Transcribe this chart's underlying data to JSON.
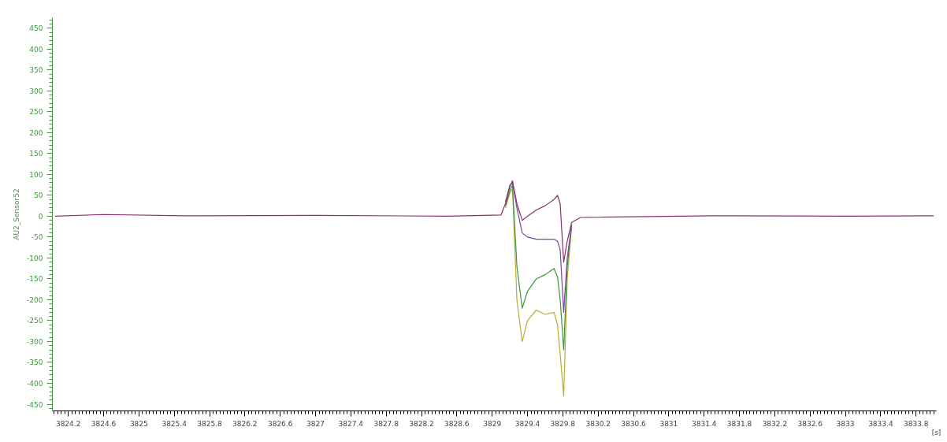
{
  "chart_data": {
    "type": "line",
    "ylabel": "AU2_Sensor52",
    "xlabel": "[s]",
    "x": [
      3824.05,
      3824.6,
      3825.5,
      3827.0,
      3828.5,
      3829.1,
      3829.15,
      3829.2,
      3829.23,
      3829.28,
      3829.34,
      3829.4,
      3829.5,
      3829.6,
      3829.7,
      3829.74,
      3829.77,
      3829.81,
      3829.85,
      3829.9,
      3830.0,
      3831.5,
      3833.0,
      3834.0
    ],
    "series": [
      {
        "color": "#8a2f6a",
        "values": [
          0,
          4,
          1,
          2,
          0,
          3,
          30,
          70,
          85,
          30,
          -10,
          0,
          15,
          25,
          40,
          50,
          30,
          -110,
          -60,
          -15,
          -3,
          1,
          0,
          1
        ]
      },
      {
        "color": "#7a44a0",
        "values": [
          null,
          null,
          null,
          null,
          null,
          null,
          34,
          74,
          80,
          20,
          -40,
          -50,
          -55,
          -55,
          -55,
          -60,
          -80,
          -230,
          -100,
          -20,
          null,
          null,
          null,
          null
        ]
      },
      {
        "color": "#3a963a",
        "values": [
          null,
          null,
          null,
          null,
          null,
          null,
          25,
          60,
          75,
          -120,
          -220,
          -180,
          -150,
          -140,
          -125,
          -145,
          -200,
          -320,
          -120,
          -22,
          null,
          null,
          null,
          null
        ]
      },
      {
        "color": "#b3ae35",
        "values": [
          null,
          null,
          null,
          null,
          null,
          null,
          20,
          55,
          65,
          -200,
          -300,
          -250,
          -225,
          -235,
          -230,
          -260,
          -330,
          -430,
          -150,
          -25,
          null,
          null,
          null,
          null
        ]
      }
    ],
    "xlim": [
      3824.02,
      3834.03
    ],
    "ylim": [
      -466,
      475
    ],
    "xticks": [
      3824.2,
      3824.6,
      3825,
      3825.4,
      3825.8,
      3826.2,
      3826.6,
      3827,
      3827.4,
      3827.8,
      3828.2,
      3828.6,
      3829,
      3829.4,
      3829.8,
      3830.2,
      3830.6,
      3831,
      3831.4,
      3831.8,
      3832.2,
      3832.6,
      3833,
      3833.4,
      3833.8
    ],
    "yticks": [
      -450,
      -400,
      -350,
      -300,
      -250,
      -200,
      -150,
      -100,
      -50,
      0,
      50,
      100,
      150,
      200,
      250,
      300,
      350,
      400,
      450
    ],
    "grid": false,
    "marker": "none",
    "line_style": "solid"
  }
}
